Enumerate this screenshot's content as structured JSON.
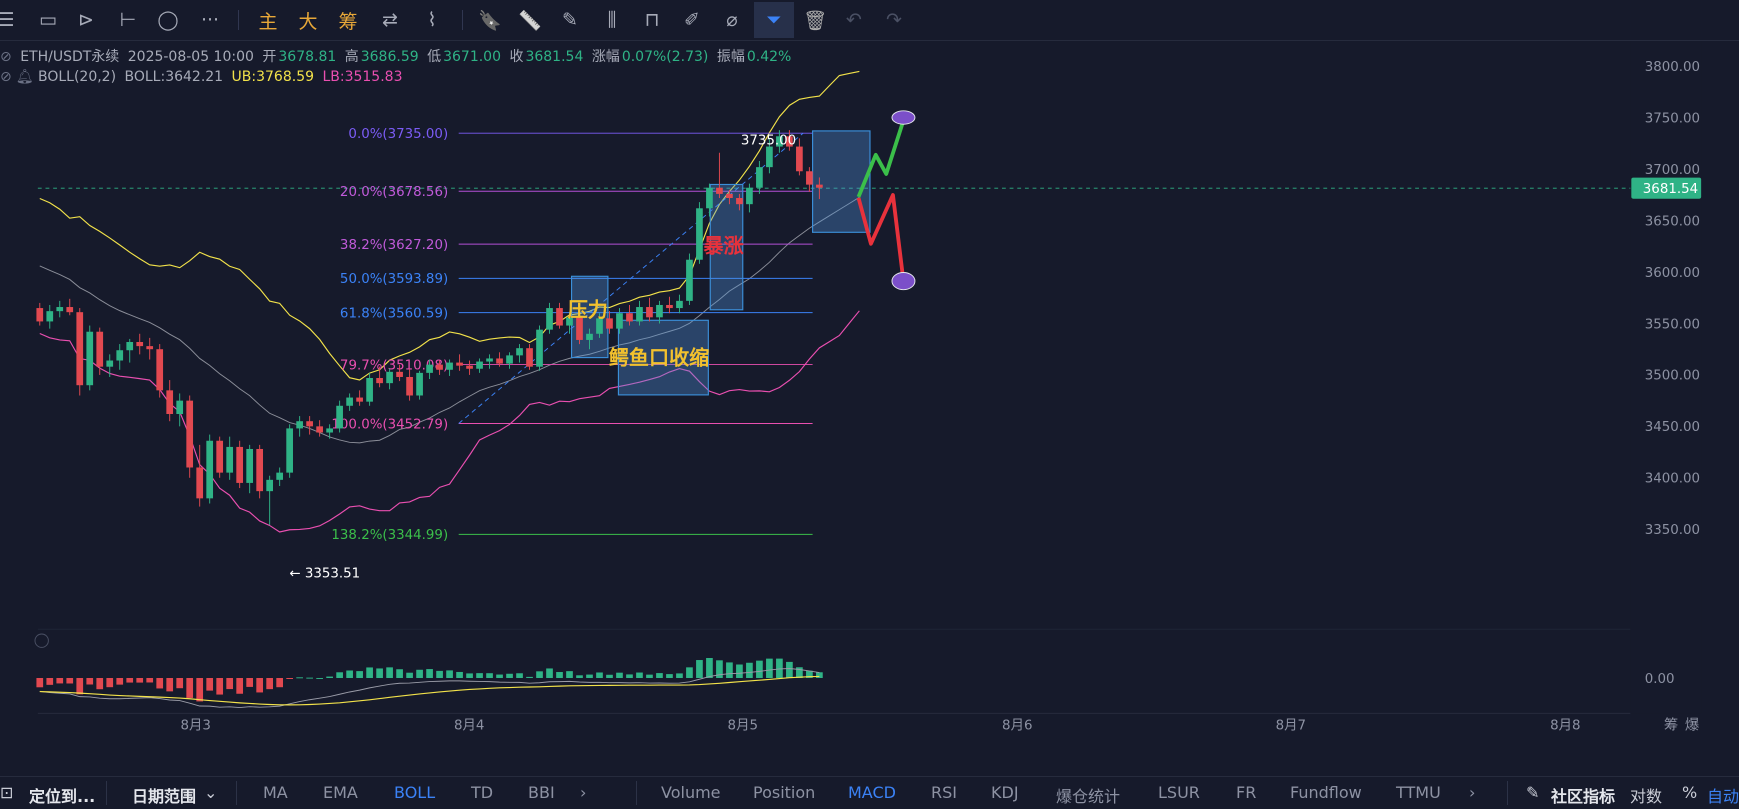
{
  "toolbar": {
    "items": [
      {
        "name": "menu-icon",
        "glyph": "☰"
      },
      {
        "name": "rectangle-icon",
        "glyph": "▭"
      },
      {
        "name": "cursor-icon",
        "glyph": "⊳"
      },
      {
        "name": "horizontal-line-icon",
        "glyph": "⊢"
      },
      {
        "name": "ellipse-icon",
        "glyph": "◯"
      },
      {
        "name": "more-icon",
        "glyph": "···"
      }
    ],
    "labels": [
      "主",
      "大",
      "筹"
    ],
    "tools": [
      {
        "name": "swap-icon",
        "glyph": "⇄"
      },
      {
        "name": "eraser-icon",
        "glyph": "⌇"
      },
      {
        "name": "bookmark-icon",
        "glyph": "🔖"
      },
      {
        "name": "ruler-icon",
        "glyph": "📏"
      },
      {
        "name": "pen-icon",
        "glyph": "✎"
      },
      {
        "name": "candle-icon",
        "glyph": "⫼"
      },
      {
        "name": "lock-icon",
        "glyph": "⊓"
      },
      {
        "name": "note-icon",
        "glyph": "✐"
      },
      {
        "name": "magnet-icon",
        "glyph": "⌀"
      },
      {
        "name": "filter-icon",
        "glyph": "⏷"
      },
      {
        "name": "trash-icon",
        "glyph": "🗑"
      },
      {
        "name": "undo-icon",
        "glyph": "↶"
      },
      {
        "name": "redo-icon",
        "glyph": "↷"
      }
    ]
  },
  "header": {
    "symbol": "ETH/USDT永续",
    "datetime": "2025-08-05 10:00",
    "open_label": "开",
    "open": "3678.81",
    "high_label": "高",
    "high": "3686.59",
    "low_label": "低",
    "low": "3671.00",
    "close_label": "收",
    "close": "3681.54",
    "change_label": "涨幅",
    "change": "0.07%(2.73)",
    "amplitude_label": "振幅",
    "amplitude": "0.42%"
  },
  "boll": {
    "name": "BOLL(20,2)",
    "mid": "BOLL:3642.21",
    "ub": "UB:3768.59",
    "lb": "LB:3515.83",
    "colors": {
      "mid": "#8b8e99",
      "ub": "#f2e24a",
      "lb": "#e94fb0"
    }
  },
  "colors": {
    "up": "#2fb386",
    "down": "#e24950",
    "fib_line": "#9b59f0",
    "price_tag": "#2fb386"
  },
  "chart_data": {
    "type": "candlestick",
    "symbol": "ETH/USDT永续",
    "interval": "1h",
    "y_ticks": [
      "3800.00",
      "3750.00",
      "3700.00",
      "3650.00",
      "3600.00",
      "3550.00",
      "3500.00",
      "3450.00",
      "3400.00",
      "3350.00"
    ],
    "x_ticks": [
      "8月3",
      "8月4",
      "8月5",
      "8月6",
      "8月7",
      "8月8"
    ],
    "current_price": "3681.54",
    "macd_tick": "0.00",
    "candles": [
      [
        3565,
        3570,
        3548,
        3552
      ],
      [
        3552,
        3568,
        3545,
        3562
      ],
      [
        3562,
        3572,
        3556,
        3566
      ],
      [
        3566,
        3574,
        3558,
        3561
      ],
      [
        3561,
        3565,
        3480,
        3490
      ],
      [
        3490,
        3548,
        3485,
        3542
      ],
      [
        3542,
        3546,
        3500,
        3508
      ],
      [
        3508,
        3520,
        3498,
        3514
      ],
      [
        3514,
        3530,
        3505,
        3524
      ],
      [
        3524,
        3535,
        3512,
        3532
      ],
      [
        3532,
        3540,
        3520,
        3528
      ],
      [
        3528,
        3536,
        3515,
        3525
      ],
      [
        3525,
        3530,
        3478,
        3485
      ],
      [
        3485,
        3495,
        3455,
        3462
      ],
      [
        3462,
        3482,
        3450,
        3475
      ],
      [
        3475,
        3480,
        3400,
        3410
      ],
      [
        3410,
        3432,
        3372,
        3380
      ],
      [
        3380,
        3442,
        3375,
        3436
      ],
      [
        3436,
        3440,
        3400,
        3405
      ],
      [
        3405,
        3440,
        3398,
        3430
      ],
      [
        3430,
        3436,
        3390,
        3395
      ],
      [
        3395,
        3432,
        3385,
        3428
      ],
      [
        3428,
        3432,
        3380,
        3387
      ],
      [
        3387,
        3402,
        3354,
        3398
      ],
      [
        3398,
        3410,
        3392,
        3405
      ],
      [
        3405,
        3452,
        3400,
        3448
      ],
      [
        3448,
        3460,
        3440,
        3455
      ],
      [
        3455,
        3460,
        3442,
        3450
      ],
      [
        3450,
        3456,
        3440,
        3444
      ],
      [
        3444,
        3452,
        3438,
        3448
      ],
      [
        3448,
        3475,
        3444,
        3470
      ],
      [
        3470,
        3482,
        3465,
        3478
      ],
      [
        3478,
        3485,
        3470,
        3474
      ],
      [
        3474,
        3502,
        3470,
        3497
      ],
      [
        3497,
        3508,
        3488,
        3492
      ],
      [
        3492,
        3506,
        3486,
        3503
      ],
      [
        3503,
        3510,
        3494,
        3498
      ],
      [
        3498,
        3506,
        3475,
        3480
      ],
      [
        3480,
        3504,
        3476,
        3502
      ],
      [
        3502,
        3515,
        3496,
        3510
      ],
      [
        3510,
        3514,
        3500,
        3505
      ],
      [
        3505,
        3515,
        3499,
        3512
      ],
      [
        3512,
        3520,
        3504,
        3509
      ],
      [
        3509,
        3514,
        3500,
        3506
      ],
      [
        3506,
        3516,
        3502,
        3513
      ],
      [
        3513,
        3520,
        3506,
        3516
      ],
      [
        3516,
        3522,
        3508,
        3511
      ],
      [
        3511,
        3522,
        3506,
        3519
      ],
      [
        3519,
        3530,
        3512,
        3526
      ],
      [
        3526,
        3530,
        3505,
        3508
      ],
      [
        3508,
        3548,
        3504,
        3544
      ],
      [
        3544,
        3570,
        3540,
        3565
      ],
      [
        3565,
        3570,
        3545,
        3548
      ],
      [
        3548,
        3560,
        3540,
        3556
      ],
      [
        3556,
        3560,
        3530,
        3534
      ],
      [
        3534,
        3545,
        3525,
        3540
      ],
      [
        3540,
        3560,
        3536,
        3555
      ],
      [
        3555,
        3562,
        3540,
        3545
      ],
      [
        3545,
        3565,
        3540,
        3560
      ],
      [
        3560,
        3568,
        3548,
        3552
      ],
      [
        3552,
        3572,
        3548,
        3566
      ],
      [
        3566,
        3575,
        3552,
        3556
      ],
      [
        3556,
        3572,
        3550,
        3568
      ],
      [
        3568,
        3576,
        3560,
        3565
      ],
      [
        3565,
        3578,
        3560,
        3572
      ],
      [
        3572,
        3618,
        3568,
        3612
      ],
      [
        3612,
        3668,
        3608,
        3662
      ],
      [
        3662,
        3686,
        3654,
        3682
      ],
      [
        3682,
        3716,
        3672,
        3676
      ],
      [
        3676,
        3680,
        3666,
        3672
      ],
      [
        3672,
        3676,
        3660,
        3666
      ],
      [
        3666,
        3686,
        3658,
        3682
      ],
      [
        3682,
        3708,
        3676,
        3702
      ],
      [
        3702,
        3730,
        3696,
        3722
      ],
      [
        3722,
        3738,
        3716,
        3732
      ],
      [
        3732,
        3738,
        3718,
        3722
      ],
      [
        3722,
        3730,
        3694,
        3698
      ],
      [
        3698,
        3702,
        3678,
        3685
      ],
      [
        3685,
        3692,
        3671,
        3682
      ]
    ],
    "fibonacci": [
      {
        "level": "0.0%(3735.00)",
        "price": 3735.0
      },
      {
        "level": "20.0%(3678.56)",
        "price": 3678.56
      },
      {
        "level": "38.2%(3627.20)",
        "price": 3627.2
      },
      {
        "level": "50.0%(3593.89)",
        "price": 3593.89
      },
      {
        "level": "61.8%(3560.59)",
        "price": 3560.59
      },
      {
        "level": "79.7%(3510.08)",
        "price": 3510.08
      },
      {
        "level": "100.0%(3452.79)",
        "price": 3452.79
      },
      {
        "level": "138.2%(3344.99)",
        "price": 3344.99
      }
    ],
    "labels": {
      "high_mark": "3735.00",
      "low_mark": "← 3353.51",
      "pressure": "压力",
      "squeeze": "鳄鱼口收缩",
      "surge": "暴涨"
    }
  },
  "bottombar": {
    "locate": "定位到...",
    "date_range": "日期范围",
    "main_indicators": [
      "MA",
      "EMA",
      "BOLL",
      "TD",
      "BBI"
    ],
    "sub_indicators": [
      "Volume",
      "Position",
      "MACD",
      "RSI",
      "KDJ",
      "爆仓统计",
      "LSUR",
      "FR",
      "Fundflow",
      "TTMU"
    ],
    "community": "社区指标",
    "log": "对数",
    "percent": "%",
    "auto": "自动"
  },
  "right_labels": {
    "chou": "筹",
    "bao": "爆"
  }
}
